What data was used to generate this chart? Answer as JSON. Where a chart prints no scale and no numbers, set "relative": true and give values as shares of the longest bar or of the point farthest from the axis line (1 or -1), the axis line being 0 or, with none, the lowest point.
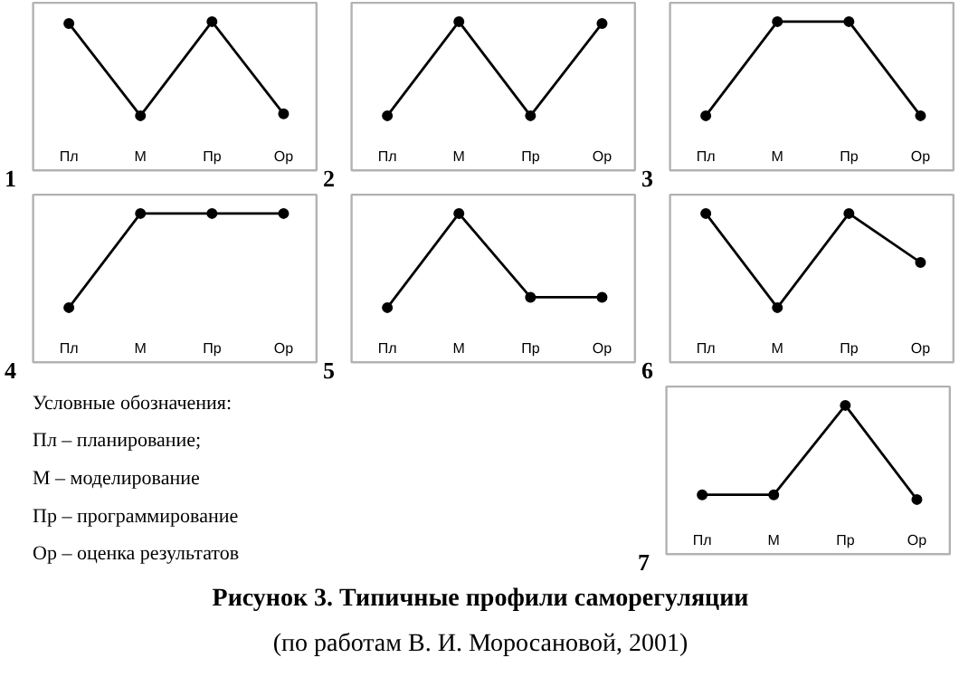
{
  "chart_data": [
    {
      "type": "line",
      "title": "1",
      "categories": [
        "Пл",
        "М",
        "Пр",
        "Ор"
      ],
      "relative": true,
      "marker": "circle",
      "series": [
        {
          "color": "#000000",
          "values": [
            0.98,
            0,
            1,
            0.02
          ]
        }
      ]
    },
    {
      "type": "line",
      "title": "2",
      "categories": [
        "Пл",
        "М",
        "Пр",
        "Ор"
      ],
      "relative": true,
      "marker": "circle",
      "series": [
        {
          "color": "#000000",
          "values": [
            0,
            1,
            0,
            0.98
          ]
        }
      ]
    },
    {
      "type": "line",
      "title": "3",
      "categories": [
        "Пл",
        "М",
        "Пр",
        "Ор"
      ],
      "relative": true,
      "marker": "circle",
      "series": [
        {
          "color": "#000000",
          "values": [
            0,
            1,
            1,
            0
          ]
        }
      ]
    },
    {
      "type": "line",
      "title": "4",
      "categories": [
        "Пл",
        "М",
        "Пр",
        "Ор"
      ],
      "relative": true,
      "marker": "circle",
      "series": [
        {
          "color": "#000000",
          "values": [
            0,
            1,
            1,
            1
          ]
        }
      ]
    },
    {
      "type": "line",
      "title": "5",
      "categories": [
        "Пл",
        "М",
        "Пр",
        "Ор"
      ],
      "relative": true,
      "marker": "circle",
      "series": [
        {
          "color": "#000000",
          "values": [
            0,
            1,
            0.11,
            0.11
          ]
        }
      ]
    },
    {
      "type": "line",
      "title": "6",
      "categories": [
        "Пл",
        "М",
        "Пр",
        "Ор"
      ],
      "relative": true,
      "marker": "circle",
      "series": [
        {
          "color": "#000000",
          "values": [
            1,
            0,
            1,
            0.48
          ]
        }
      ]
    },
    {
      "type": "other",
      "annotations": [
        "Условные обозначения:",
        "Пл – планирование;",
        "М  – моделирование",
        "Пр – программирование",
        "Ор – оценка результатов"
      ]
    },
    {
      "type": "line",
      "title": "7",
      "categories": [
        "Пл",
        "М",
        "Пр",
        "Ор"
      ],
      "relative": true,
      "marker": "circle",
      "series": [
        {
          "color": "#000000",
          "values": [
            0.05,
            0.05,
            1,
            0
          ]
        }
      ]
    },
    {
      "type": "other",
      "title": "Рисунок 3. Типичные профили саморегуляции",
      "subtitle": "(по работам В. И. Моросановой, 2001)"
    }
  ]
}
